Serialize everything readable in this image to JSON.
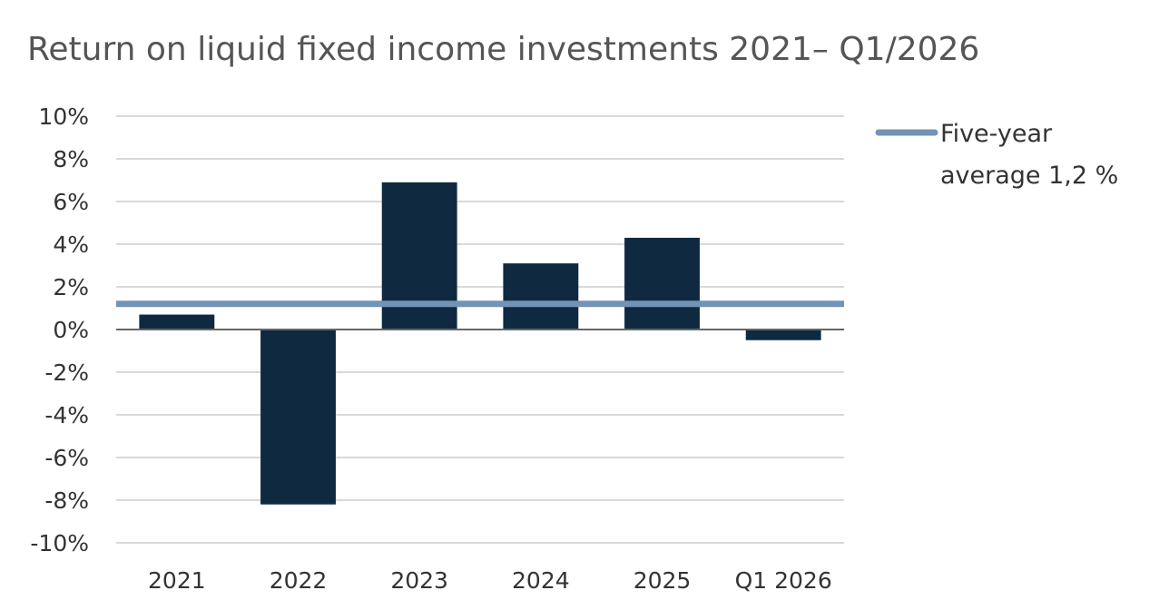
{
  "chart_data": {
    "type": "bar",
    "title": "Return on liquid fixed income investments 2021– Q1/2026",
    "categories": [
      "2021",
      "2022",
      "2023",
      "2024",
      "2025",
      "Q1 2026"
    ],
    "series": [
      {
        "values": [
          0.7,
          -8.2,
          6.9,
          3.1,
          4.3,
          -0.5
        ]
      }
    ],
    "reference_line": {
      "value": 1.2,
      "legend_lines": [
        "Five-year",
        "average 1,2 %"
      ]
    },
    "y_ticks": [
      10,
      8,
      6,
      4,
      2,
      0,
      -2,
      -4,
      -6,
      -8,
      -10
    ],
    "y_tick_labels": [
      "10%",
      "8%",
      "6%",
      "4%",
      "2%",
      "0%",
      "-2%",
      "-4%",
      "-6%",
      "-8%",
      "-10%"
    ],
    "ylim": [
      -10,
      10
    ],
    "grid": true,
    "legend_position": "right",
    "colors": {
      "bar": "#0f2a40",
      "average_line": "#7393b5",
      "grid": "#d9d9d9",
      "axis": "#666666"
    }
  }
}
